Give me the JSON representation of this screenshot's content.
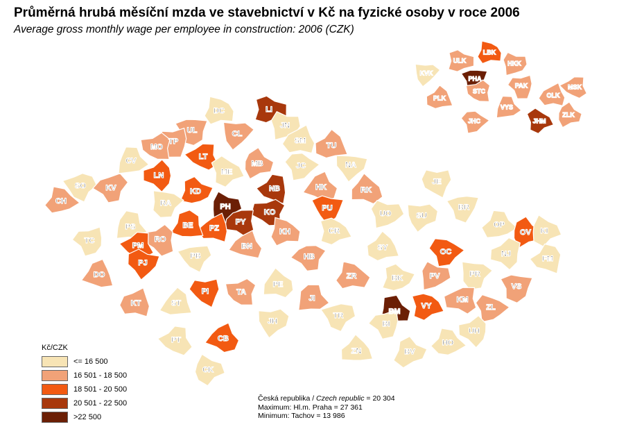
{
  "title": "Průměrná hrubá měsíční mzda ve stavebnictví v Kč na fyzické osoby v roce 2006",
  "subtitle": "Average gross monthly wage per employee in construction: 2006 (CZK)",
  "legend": {
    "title": "Kč/CZK",
    "classes": [
      {
        "label": "<= 16 500",
        "color": "#f7e4b5"
      },
      {
        "label": "16 501 - 18 500",
        "color": "#f1a278"
      },
      {
        "label": "18 501 - 20 500",
        "color": "#f25a12"
      },
      {
        "label": "20 501 - 22 500",
        "color": "#a8380c"
      },
      {
        "label": ">22 500",
        "color": "#6b1f05"
      }
    ]
  },
  "stats": {
    "line1_prefix": "Česká republika / ",
    "line1_italic": "Czech republic",
    "line1_suffix": " = 20 304",
    "line2": "Maximum: Hl.m. Praha =  27 361",
    "line3": "Minimum: Tachov = 13 986"
  },
  "districts": [
    {
      "code": "DC",
      "class": 0
    },
    {
      "code": "LI",
      "class": 3
    },
    {
      "code": "JN",
      "class": 0
    },
    {
      "code": "CL",
      "class": 1
    },
    {
      "code": "UL",
      "class": 1
    },
    {
      "code": "TP",
      "class": 1
    },
    {
      "code": "MO",
      "class": 1
    },
    {
      "code": "LT",
      "class": 2
    },
    {
      "code": "SM",
      "class": 0
    },
    {
      "code": "TU",
      "class": 1
    },
    {
      "code": "CV",
      "class": 0
    },
    {
      "code": "MB",
      "class": 1
    },
    {
      "code": "ME",
      "class": 0
    },
    {
      "code": "JC",
      "class": 0
    },
    {
      "code": "NA",
      "class": 0
    },
    {
      "code": "SO",
      "class": 0
    },
    {
      "code": "KV",
      "class": 1
    },
    {
      "code": "LN",
      "class": 2
    },
    {
      "code": "NB",
      "class": 3
    },
    {
      "code": "HK",
      "class": 1
    },
    {
      "code": "RK",
      "class": 1
    },
    {
      "code": "CH",
      "class": 1
    },
    {
      "code": "KD",
      "class": 2
    },
    {
      "code": "PH",
      "class": 4
    },
    {
      "code": "RA",
      "class": 0
    },
    {
      "code": "PU",
      "class": 2
    },
    {
      "code": "JE",
      "class": 0
    },
    {
      "code": "KO",
      "class": 3
    },
    {
      "code": "PY",
      "class": 3
    },
    {
      "code": "PZ",
      "class": 2
    },
    {
      "code": "BE",
      "class": 2
    },
    {
      "code": "PS",
      "class": 0
    },
    {
      "code": "KH",
      "class": 1
    },
    {
      "code": "CR",
      "class": 0
    },
    {
      "code": "UO",
      "class": 0
    },
    {
      "code": "SU",
      "class": 0
    },
    {
      "code": "BR",
      "class": 0
    },
    {
      "code": "TC",
      "class": 0
    },
    {
      "code": "RO",
      "class": 1
    },
    {
      "code": "PM",
      "class": 2
    },
    {
      "code": "BN",
      "class": 1
    },
    {
      "code": "SY",
      "class": 0
    },
    {
      "code": "OP",
      "class": 0
    },
    {
      "code": "OV",
      "class": 2
    },
    {
      "code": "KI",
      "class": 0
    },
    {
      "code": "OC",
      "class": 2
    },
    {
      "code": "PJ",
      "class": 2
    },
    {
      "code": "PB",
      "class": 0
    },
    {
      "code": "HB",
      "class": 1
    },
    {
      "code": "NJ",
      "class": 0
    },
    {
      "code": "FM",
      "class": 0
    },
    {
      "code": "DO",
      "class": 1
    },
    {
      "code": "PE",
      "class": 0
    },
    {
      "code": "ZR",
      "class": 1
    },
    {
      "code": "BK",
      "class": 0
    },
    {
      "code": "PV",
      "class": 1
    },
    {
      "code": "PR",
      "class": 0
    },
    {
      "code": "VS",
      "class": 1
    },
    {
      "code": "PI",
      "class": 2
    },
    {
      "code": "TA",
      "class": 1
    },
    {
      "code": "KM",
      "class": 1
    },
    {
      "code": "KT",
      "class": 1
    },
    {
      "code": "ST",
      "class": 0
    },
    {
      "code": "JI",
      "class": 1
    },
    {
      "code": "BM",
      "class": 4
    },
    {
      "code": "VY",
      "class": 2
    },
    {
      "code": "ZL",
      "class": 1
    },
    {
      "code": "JH",
      "class": 0
    },
    {
      "code": "TR",
      "class": 0
    },
    {
      "code": "BI",
      "class": 0
    },
    {
      "code": "UH",
      "class": 0
    },
    {
      "code": "PT",
      "class": 0
    },
    {
      "code": "CB",
      "class": 2
    },
    {
      "code": "ZN",
      "class": 0
    },
    {
      "code": "HO",
      "class": 0
    },
    {
      "code": "BV",
      "class": 0
    },
    {
      "code": "CK",
      "class": 0
    }
  ],
  "regions": [
    {
      "code": "LBK",
      "class": 2
    },
    {
      "code": "ULK",
      "class": 1
    },
    {
      "code": "HKK",
      "class": 1
    },
    {
      "code": "KVK",
      "class": 0
    },
    {
      "code": "PHA",
      "class": 4
    },
    {
      "code": "PAK",
      "class": 1
    },
    {
      "code": "STC",
      "class": 1
    },
    {
      "code": "MSK",
      "class": 1
    },
    {
      "code": "OLK",
      "class": 1
    },
    {
      "code": "PLK",
      "class": 1
    },
    {
      "code": "VYS",
      "class": 1
    },
    {
      "code": "ZLK",
      "class": 1
    },
    {
      "code": "JHM",
      "class": 3
    },
    {
      "code": "JHC",
      "class": 1
    }
  ]
}
